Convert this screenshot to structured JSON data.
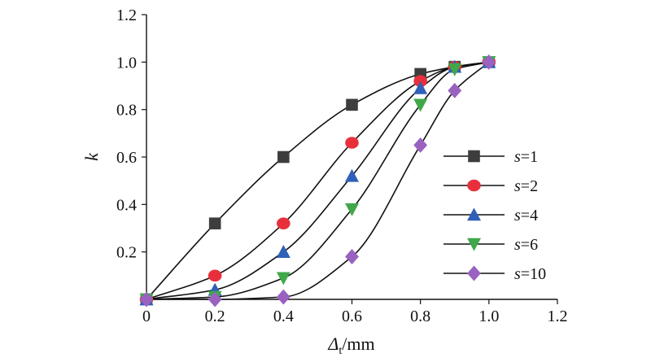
{
  "chart_data": {
    "type": "line",
    "xlabel": {
      "main": "Δ",
      "sub": "t",
      "unit": "/mm"
    },
    "ylabel": "k",
    "xlim": [
      0,
      1.2
    ],
    "ylim": [
      0,
      1.2
    ],
    "xticks": [
      "0",
      "0.2",
      "0.4",
      "0.6",
      "0.8",
      "1.0",
      "1.2"
    ],
    "yticks": [
      "0.2",
      "0.4",
      "0.6",
      "0.8",
      "1.0",
      "1.2"
    ],
    "legend_position": "right",
    "series": [
      {
        "name": "s=1",
        "var": "s",
        "eq": "=1",
        "marker": "square",
        "color": "#3d3d3d",
        "points": [
          [
            0,
            0
          ],
          [
            0.2,
            0.32
          ],
          [
            0.4,
            0.6
          ],
          [
            0.6,
            0.82
          ],
          [
            0.8,
            0.95
          ],
          [
            0.9,
            0.98
          ],
          [
            1.0,
            1.0
          ]
        ]
      },
      {
        "name": "s=2",
        "var": "s",
        "eq": "=2",
        "marker": "circle",
        "color": "#e8303c",
        "points": [
          [
            0,
            0
          ],
          [
            0.2,
            0.1
          ],
          [
            0.4,
            0.32
          ],
          [
            0.6,
            0.66
          ],
          [
            0.8,
            0.92
          ],
          [
            0.9,
            0.98
          ],
          [
            1.0,
            1.0
          ]
        ]
      },
      {
        "name": "s=4",
        "var": "s",
        "eq": "=4",
        "marker": "triangle-up",
        "color": "#3060b8",
        "points": [
          [
            0,
            0
          ],
          [
            0.2,
            0.04
          ],
          [
            0.4,
            0.2
          ],
          [
            0.6,
            0.52
          ],
          [
            0.8,
            0.89
          ],
          [
            0.9,
            0.98
          ],
          [
            1.0,
            1.0
          ]
        ]
      },
      {
        "name": "s=6",
        "var": "s",
        "eq": "=6",
        "marker": "triangle-down",
        "color": "#40a84a",
        "points": [
          [
            0,
            0
          ],
          [
            0.2,
            0.01
          ],
          [
            0.4,
            0.09
          ],
          [
            0.6,
            0.38
          ],
          [
            0.8,
            0.82
          ],
          [
            0.9,
            0.97
          ],
          [
            1.0,
            1.0
          ]
        ]
      },
      {
        "name": "s=10",
        "var": "s",
        "eq": "=10",
        "marker": "diamond",
        "color": "#9a62c0",
        "points": [
          [
            0,
            0
          ],
          [
            0.2,
            0.0
          ],
          [
            0.4,
            0.01
          ],
          [
            0.6,
            0.18
          ],
          [
            0.8,
            0.65
          ],
          [
            0.9,
            0.88
          ],
          [
            1.0,
            1.0
          ]
        ]
      }
    ]
  }
}
